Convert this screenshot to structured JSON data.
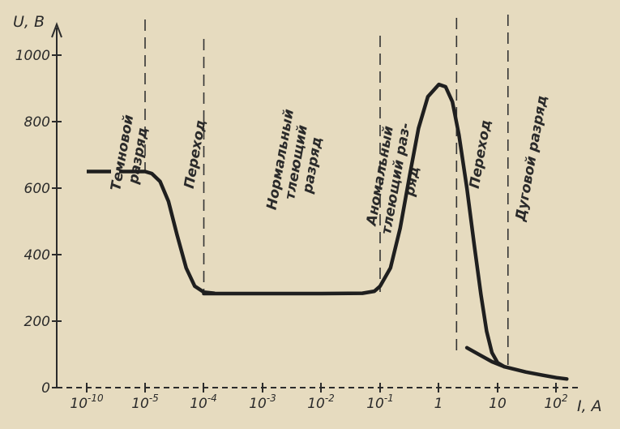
{
  "chart_data": {
    "type": "line",
    "ylabel": "U, В",
    "xlabel": "I, А",
    "x_scale": "log",
    "ylim": [
      0,
      1100
    ],
    "y_ticks": [
      "0",
      "200",
      "400",
      "600",
      "800",
      "1000"
    ],
    "x_ticks": [
      {
        "base": "10",
        "exp": "-10"
      },
      {
        "base": "10",
        "exp": "-5"
      },
      {
        "base": "10",
        "exp": "-4"
      },
      {
        "base": "10",
        "exp": "-3"
      },
      {
        "base": "10",
        "exp": "-2"
      },
      {
        "base": "10",
        "exp": "-1"
      },
      {
        "base": "1",
        "exp": ""
      },
      {
        "base": "10",
        "exp": ""
      },
      {
        "base": "10",
        "exp": "2"
      }
    ],
    "regions": [
      {
        "lines": [
          "Темновой",
          "разряд"
        ]
      },
      {
        "lines": [
          "Переход"
        ]
      },
      {
        "lines": [
          "Нормальный",
          "тлеющий",
          "разряд"
        ]
      },
      {
        "lines": [
          "Аномальный",
          "тлеющий раз-",
          "ряд"
        ]
      },
      {
        "lines": [
          "Переход"
        ]
      },
      {
        "lines": [
          "Дуговой разряд"
        ]
      }
    ],
    "series": [
      {
        "style": "dashed",
        "points": [
          [
            1e-10,
            650
          ],
          [
            1e-06,
            650
          ]
        ]
      },
      {
        "style": "solid",
        "points": [
          [
            1e-06,
            650
          ],
          [
            1e-05,
            650
          ],
          [
            1.3e-05,
            644
          ],
          [
            1.8e-05,
            620
          ],
          [
            2.5e-05,
            560
          ],
          [
            3.5e-05,
            460
          ],
          [
            5e-05,
            360
          ],
          [
            7e-05,
            305
          ],
          [
            0.0001,
            287
          ],
          [
            0.00015,
            284
          ],
          [
            0.0001,
            283
          ],
          [
            0.001,
            283
          ],
          [
            0.01,
            283
          ],
          [
            0.05,
            284
          ],
          [
            0.08,
            290
          ],
          [
            0.1,
            305
          ],
          [
            0.15,
            360
          ],
          [
            0.22,
            480
          ],
          [
            0.32,
            640
          ],
          [
            0.45,
            780
          ],
          [
            0.65,
            875
          ],
          [
            1.0,
            912
          ],
          [
            1.3,
            905
          ],
          [
            1.7,
            860
          ],
          [
            2.2,
            760
          ],
          [
            3.0,
            600
          ],
          [
            4.0,
            430
          ],
          [
            5.2,
            280
          ],
          [
            6.5,
            170
          ],
          [
            8.0,
            105
          ],
          [
            10,
            75
          ],
          [
            13,
            63
          ]
        ]
      },
      {
        "style": "solid",
        "points": [
          [
            3.0,
            120
          ],
          [
            5.0,
            98
          ],
          [
            8.0,
            78
          ],
          [
            13,
            63
          ],
          [
            30,
            47
          ],
          [
            60,
            37
          ],
          [
            100,
            30
          ],
          [
            150,
            26
          ]
        ]
      }
    ],
    "boundaries": [
      1e-05,
      0.0001,
      0.1,
      2.0,
      15.0
    ],
    "boundary_style": "dashed",
    "grid": false
  }
}
